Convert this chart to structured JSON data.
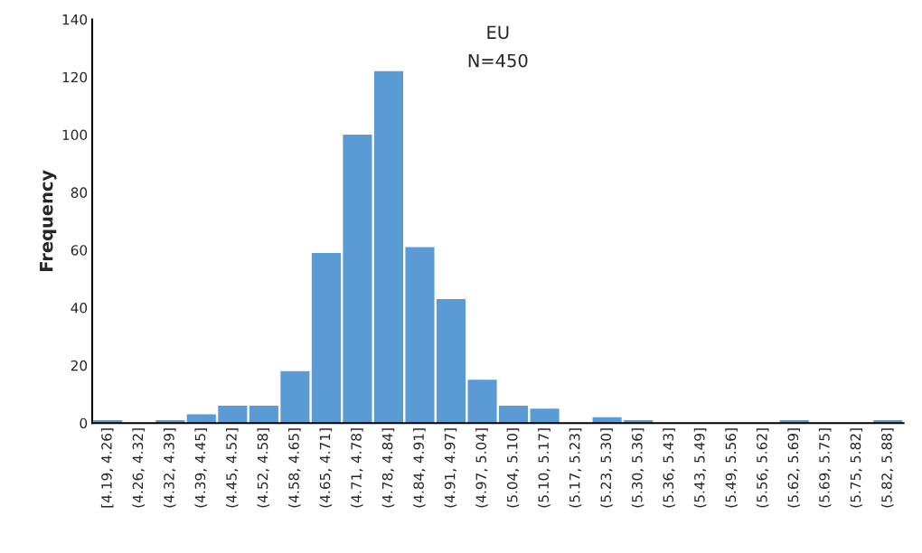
{
  "chart_data": {
    "type": "bar",
    "title": "EU",
    "subtitle": "N=450",
    "ylabel": "Frequency",
    "categories": [
      "[4.19, 4.26]",
      "(4.26, 4.32]",
      "(4.32, 4.39]",
      "(4.39, 4.45]",
      "(4.45, 4.52]",
      "(4.52, 4.58]",
      "(4.58, 4.65]",
      "(4.65, 4.71]",
      "(4.71, 4.78]",
      "(4.78, 4.84]",
      "(4.84, 4.91]",
      "(4.91, 4.97]",
      "(4.97, 5.04]",
      "(5.04, 5.10]",
      "(5.10, 5.17]",
      "(5.17, 5.23]",
      "(5.23, 5.30]",
      "(5.30, 5.36]",
      "(5.36, 5.43]",
      "(5.43, 5.49]",
      "(5.49, 5.56]",
      "(5.56, 5.62]",
      "(5.62, 5.69]",
      "(5.69, 5.75]",
      "(5.75, 5.82]",
      "(5.82, 5.88]"
    ],
    "values": [
      1,
      0,
      1,
      3,
      6,
      6,
      18,
      59,
      100,
      122,
      61,
      43,
      15,
      6,
      5,
      0,
      2,
      1,
      0,
      0,
      0,
      0,
      1,
      0,
      0,
      1
    ],
    "color": "#5b9bd5",
    "ylim": [
      0,
      140
    ],
    "yticks": [
      0,
      20,
      40,
      60,
      80,
      100,
      120,
      140
    ],
    "grid": false,
    "legend": false
  }
}
